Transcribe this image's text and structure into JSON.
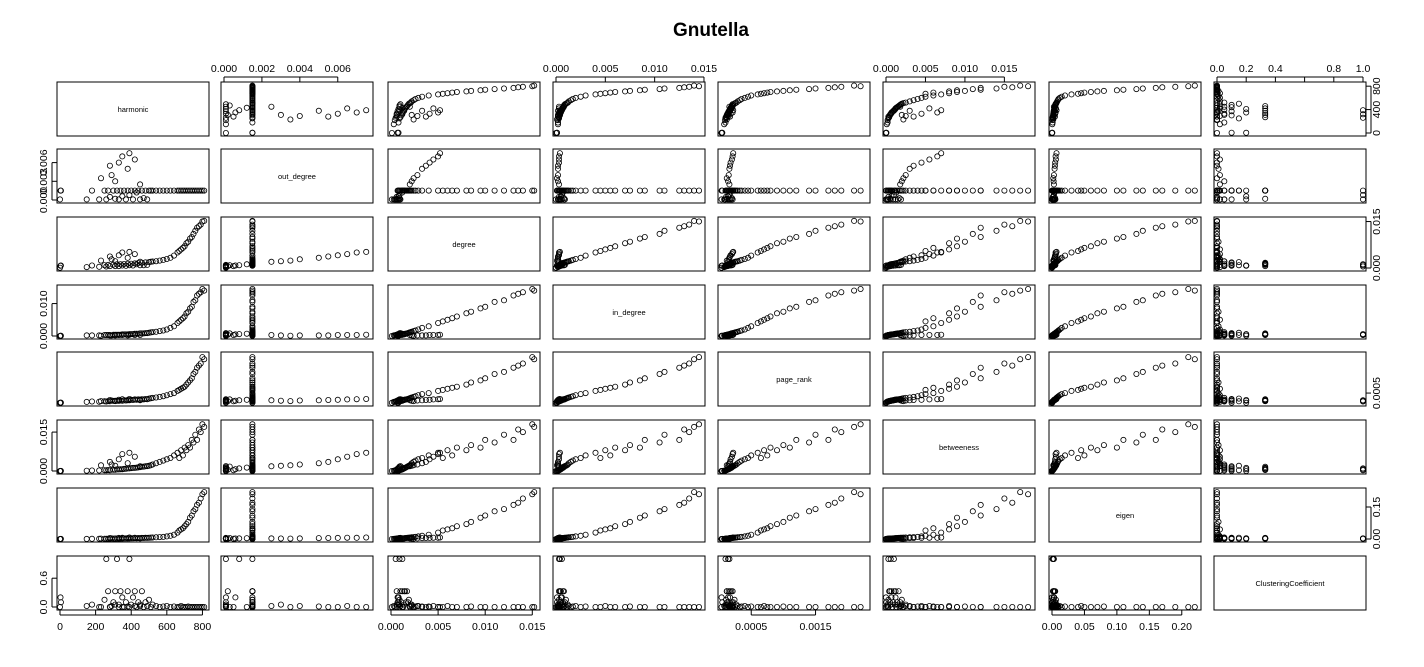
{
  "chart_data": {
    "type": "scatter",
    "matrix": true,
    "title": "Gnutella",
    "grid": false,
    "legend": "none",
    "variables": [
      {
        "name": "harmonic",
        "range": [
          0,
          820
        ],
        "ticks": [
          0,
          200,
          400,
          600,
          800
        ],
        "tick_labels": [
          "0",
          "200",
          "400",
          "600",
          "800"
        ]
      },
      {
        "name": "out_degree",
        "range": [
          0,
          0.0077
        ],
        "ticks": [
          0,
          0.002,
          0.004,
          0.006
        ],
        "tick_labels": [
          "0.000",
          "0.002",
          "0.004",
          "0.006"
        ]
      },
      {
        "name": "degree",
        "range": [
          0,
          0.0155
        ],
        "ticks": [
          0,
          0.005,
          0.01,
          0.015
        ],
        "tick_labels": [
          "0.000",
          "0.005",
          "0.010",
          "0.015"
        ]
      },
      {
        "name": "in_degree",
        "range": [
          0,
          0.0148
        ],
        "ticks": [
          0,
          0.005,
          0.01,
          0.015
        ],
        "tick_labels": [
          "0.000",
          "0.005",
          "0.010",
          "0.015"
        ]
      },
      {
        "name": "page_rank",
        "range": [
          3e-05,
          0.0023
        ],
        "ticks": [
          0.0005,
          0.0015
        ],
        "tick_labels": [
          "0.0005",
          "0.0015"
        ]
      },
      {
        "name": "betweeness",
        "range": [
          0,
          0.0185
        ],
        "ticks": [
          0,
          0.005,
          0.01,
          0.015
        ],
        "tick_labels": [
          "0.000",
          "0.005",
          "0.010",
          "0.015"
        ]
      },
      {
        "name": "eigen",
        "range": [
          0,
          0.225
        ],
        "ticks": [
          0,
          0.05,
          0.1,
          0.15,
          0.2
        ],
        "tick_labels": [
          "0.00",
          "0.05",
          "0.10",
          "0.15",
          "0.20"
        ]
      },
      {
        "name": "ClusteringCoefficient",
        "range": [
          0,
          1
        ],
        "ticks": [
          0,
          0.2,
          0.4,
          0.6,
          0.8,
          1.0
        ],
        "tick_labels": [
          "0.0",
          "0.2",
          "0.4",
          "0.6",
          "0.8",
          "1.0"
        ]
      }
    ],
    "axis_labels": {
      "top": [
        {
          "var": 1,
          "ticks": [
            0,
            0.002,
            0.004,
            0.006
          ],
          "labels": [
            "0.000",
            "0.002",
            "0.004",
            "0.006"
          ]
        },
        {
          "var": 3,
          "ticks": [
            0,
            0.005,
            0.01,
            0.015
          ],
          "labels": [
            "0.000",
            "0.005",
            "0.010",
            "0.015"
          ]
        },
        {
          "var": 5,
          "ticks": [
            0,
            0.005,
            0.01,
            0.015
          ],
          "labels": [
            "0.000",
            "0.005",
            "0.010",
            "0.015"
          ]
        },
        {
          "var": 7,
          "ticks": [
            0,
            0.2,
            0.4,
            0.6,
            0.8,
            1.0
          ],
          "labels": [
            "0.0",
            "0.2",
            "0.4",
            "",
            "0.8",
            "1.0"
          ]
        }
      ],
      "bottom": [
        {
          "var": 0,
          "ticks": [
            0,
            200,
            400,
            600,
            800
          ],
          "labels": [
            "0",
            "200",
            "400",
            "600",
            "800"
          ]
        },
        {
          "var": 2,
          "ticks": [
            0,
            0.005,
            0.01,
            0.015
          ],
          "labels": [
            "0.000",
            "0.005",
            "0.010",
            "0.015"
          ]
        },
        {
          "var": 4,
          "ticks": [
            0.0005,
            0.0015
          ],
          "labels": [
            "0.0005",
            "0.0015"
          ]
        },
        {
          "var": 6,
          "ticks": [
            0,
            0.05,
            0.1,
            0.15,
            0.2
          ],
          "labels": [
            "0.00",
            "0.05",
            "0.10",
            "0.15",
            "0.20"
          ]
        }
      ],
      "left": [
        {
          "var": 1,
          "ticks": [
            0,
            0.003,
            0.006
          ],
          "labels": [
            "0.000",
            "0.003",
            "0.006"
          ]
        },
        {
          "var": 3,
          "ticks": [
            0,
            0.01
          ],
          "labels": [
            "0.000",
            "0.010"
          ]
        },
        {
          "var": 5,
          "ticks": [
            0,
            0.015
          ],
          "labels": [
            "0.000",
            "0.015"
          ]
        },
        {
          "var": 7,
          "ticks": [
            0,
            0.6
          ],
          "labels": [
            "0.0",
            "0.6"
          ]
        }
      ],
      "right": [
        {
          "var": 0,
          "ticks": [
            0,
            400,
            800
          ],
          "labels": [
            "0",
            "400",
            "800"
          ]
        },
        {
          "var": 2,
          "ticks": [
            0,
            0.015
          ],
          "labels": [
            "0.000",
            "0.015"
          ]
        },
        {
          "var": 4,
          "ticks": [
            0.0005
          ],
          "labels": [
            "0.0005"
          ]
        },
        {
          "var": 6,
          "ticks": [
            0,
            0.15
          ],
          "labels": [
            "0.00",
            "0.15"
          ]
        }
      ]
    },
    "series": [
      {
        "columns": [
          "harmonic",
          "out_degree",
          "degree",
          "in_degree",
          "page_rank",
          "betweeness",
          "eigen",
          "ClusteringCoefficient"
        ],
        "points": [
          [
            0,
            0.0001,
            0.0001,
            0,
            4e-05,
            0,
            0,
            0.0
          ],
          [
            5,
            0.0015,
            0.0008,
            0.0001,
            5e-05,
            5e-05,
            0.0005,
            0.1
          ],
          [
            3,
            0.0015,
            0.0007,
            0.0001,
            4e-05,
            0,
            0,
            0.2
          ],
          [
            150,
            0.0001,
            0.0003,
            0.0002,
            8e-05,
            0.0001,
            0.0005,
            0.02
          ],
          [
            180,
            0.0015,
            0.0008,
            0.0002,
            0.0001,
            0.0002,
            0.001,
            0.05
          ],
          [
            220,
            0.0001,
            0.0004,
            0.0002,
            9e-05,
            0.0002,
            0.0008,
            0.0
          ],
          [
            250,
            0.0015,
            0.0009,
            0.0003,
            0.00011,
            0.0003,
            0.0012,
            0.15
          ],
          [
            260,
            0.0001,
            0.0005,
            0.0003,
            0.0001,
            0.0003,
            0.001,
            1.0
          ],
          [
            270,
            0.0015,
            0.001,
            0.0003,
            0.00012,
            0.0004,
            0.0015,
            0.33
          ],
          [
            280,
            0.0005,
            0.0006,
            0.0003,
            0.00011,
            0.0003,
            0.0013,
            0.0
          ],
          [
            300,
            0.0015,
            0.0011,
            0.0004,
            0.00013,
            0.0005,
            0.002,
            0.1
          ],
          [
            310,
            0.0002,
            0.0006,
            0.0004,
            0.00012,
            0.0005,
            0.0018,
            0.33
          ],
          [
            320,
            0.0015,
            0.0012,
            0.0004,
            0.00014,
            0.0006,
            0.0022,
            1.0
          ],
          [
            330,
            0.0001,
            0.0006,
            0.0004,
            0.00013,
            0.0006,
            0.002,
            0.05
          ],
          [
            340,
            0.0015,
            0.0012,
            0.0004,
            0.00015,
            0.0007,
            0.0025,
            0.33
          ],
          [
            350,
            0.0006,
            0.0008,
            0.0005,
            0.00014,
            0.0007,
            0.0024,
            0.2
          ],
          [
            360,
            0.0015,
            0.0013,
            0.0005,
            0.00016,
            0.0008,
            0.0028,
            0.0
          ],
          [
            370,
            0.0001,
            0.0007,
            0.0005,
            0.00015,
            0.0009,
            0.0026,
            0.1
          ],
          [
            380,
            0.0015,
            0.0014,
            0.0005,
            0.00017,
            0.001,
            0.003,
            0.33
          ],
          [
            390,
            0.0008,
            0.0009,
            0.0006,
            0.00016,
            0.001,
            0.003,
            1.0
          ],
          [
            400,
            0.0015,
            0.0014,
            0.0006,
            0.00018,
            0.0011,
            0.0035,
            0.05
          ],
          [
            410,
            0.0001,
            0.0008,
            0.0006,
            0.00017,
            0.0012,
            0.0034,
            0.2
          ],
          [
            420,
            0.0015,
            0.0015,
            0.0007,
            0.00019,
            0.0012,
            0.004,
            0.33
          ],
          [
            430,
            0.0012,
            0.0012,
            0.0007,
            0.00018,
            0.0013,
            0.0038,
            0.0
          ],
          [
            440,
            0.0015,
            0.0016,
            0.0007,
            0.0002,
            0.0014,
            0.0045,
            0.1
          ],
          [
            450,
            0.0001,
            0.0009,
            0.0008,
            0.00019,
            0.0015,
            0.0043,
            0.05
          ],
          [
            460,
            0.0015,
            0.0017,
            0.0008,
            0.00021,
            0.0016,
            0.005,
            0.33
          ],
          [
            470,
            0.0003,
            0.0009,
            0.0008,
            0.0002,
            0.0017,
            0.0048,
            0.0
          ],
          [
            480,
            0.0015,
            0.0018,
            0.0009,
            0.00022,
            0.0018,
            0.0055,
            0.1
          ],
          [
            490,
            0.0001,
            0.001,
            0.0009,
            0.00021,
            0.0019,
            0.0053,
            0.02
          ],
          [
            500,
            0.0015,
            0.0019,
            0.001,
            0.00024,
            0.002,
            0.006,
            0.15
          ],
          [
            510,
            0.0015,
            0.002,
            0.0011,
            0.00025,
            0.0022,
            0.0066,
            0.0
          ],
          [
            520,
            0.0015,
            0.0021,
            0.0012,
            0.00027,
            0.0025,
            0.007,
            0.05
          ],
          [
            540,
            0.0015,
            0.0022,
            0.0013,
            0.00029,
            0.003,
            0.008,
            0.02
          ],
          [
            560,
            0.0015,
            0.0024,
            0.0015,
            0.00032,
            0.0035,
            0.009,
            0.0
          ],
          [
            580,
            0.0015,
            0.0026,
            0.0017,
            0.00035,
            0.004,
            0.01,
            0.01
          ],
          [
            600,
            0.0015,
            0.0029,
            0.002,
            0.0004,
            0.0045,
            0.012,
            0.02
          ],
          [
            620,
            0.0015,
            0.0033,
            0.0025,
            0.00045,
            0.005,
            0.015,
            0.0
          ],
          [
            640,
            0.0015,
            0.004,
            0.003,
            0.0005,
            0.006,
            0.02,
            0.01
          ],
          [
            660,
            0.0015,
            0.005,
            0.004,
            0.0006,
            0.007,
            0.03,
            0.0
          ],
          [
            680,
            0.0015,
            0.006,
            0.005,
            0.0007,
            0.008,
            0.045,
            0.02
          ],
          [
            700,
            0.0015,
            0.007,
            0.006,
            0.0008,
            0.009,
            0.06,
            0.0
          ],
          [
            720,
            0.0015,
            0.0085,
            0.0075,
            0.001,
            0.01,
            0.08,
            0.01
          ],
          [
            740,
            0.0015,
            0.01,
            0.009,
            0.0012,
            0.012,
            0.11,
            0.0
          ],
          [
            760,
            0.0015,
            0.012,
            0.011,
            0.0015,
            0.014,
            0.14,
            0.0
          ],
          [
            780,
            0.0015,
            0.0135,
            0.013,
            0.0018,
            0.016,
            0.17,
            0.0
          ],
          [
            800,
            0.0015,
            0.015,
            0.0145,
            0.0022,
            0.018,
            0.21,
            0.0
          ],
          [
            810,
            0.0015,
            0.0152,
            0.014,
            0.0021,
            0.017,
            0.22,
            0.0
          ],
          [
            790,
            0.0015,
            0.014,
            0.0135,
            0.0019,
            0.015,
            0.19,
            0.0
          ],
          [
            770,
            0.0015,
            0.013,
            0.0125,
            0.0017,
            0.012,
            0.16,
            0.0
          ],
          [
            750,
            0.0015,
            0.011,
            0.0105,
            0.0014,
            0.011,
            0.13,
            0.0
          ],
          [
            730,
            0.0015,
            0.0095,
            0.0085,
            0.0011,
            0.009,
            0.1,
            0.0
          ],
          [
            710,
            0.0015,
            0.008,
            0.007,
            0.0009,
            0.008,
            0.07,
            0.0
          ],
          [
            690,
            0.0015,
            0.0065,
            0.0055,
            0.00075,
            0.006,
            0.05,
            0.0
          ],
          [
            670,
            0.0015,
            0.0055,
            0.0045,
            0.00065,
            0.005,
            0.04,
            0.0
          ],
          [
            290,
            0.004,
            0.0028,
            0.0002,
            0.00015,
            0.0025,
            0.003,
            0.02
          ],
          [
            380,
            0.005,
            0.0033,
            0.0002,
            0.00016,
            0.003,
            0.004,
            0.01
          ],
          [
            330,
            0.006,
            0.0041,
            0.0003,
            0.00018,
            0.0045,
            0.005,
            0.0
          ],
          [
            280,
            0.0055,
            0.0037,
            0.0002,
            0.00017,
            0.0035,
            0.0045,
            0.0
          ],
          [
            420,
            0.0065,
            0.0045,
            0.0003,
            0.0002,
            0.0055,
            0.006,
            0.02
          ],
          [
            350,
            0.007,
            0.005,
            0.0003,
            0.00021,
            0.0065,
            0.0055,
            0.0
          ],
          [
            390,
            0.0075,
            0.0052,
            0.0004,
            0.00022,
            0.007,
            0.007,
            0.0
          ],
          [
            310,
            0.003,
            0.0022,
            0.0002,
            0.00014,
            0.002,
            0.0025,
            0.05
          ],
          [
            450,
            0.0025,
            0.002,
            0.0003,
            0.00016,
            0.0018,
            0.003,
            0.02
          ],
          [
            230,
            0.0035,
            0.0024,
            0.0001,
            0.00012,
            0.0022,
            0.002,
            0.0
          ]
        ]
      }
    ]
  }
}
